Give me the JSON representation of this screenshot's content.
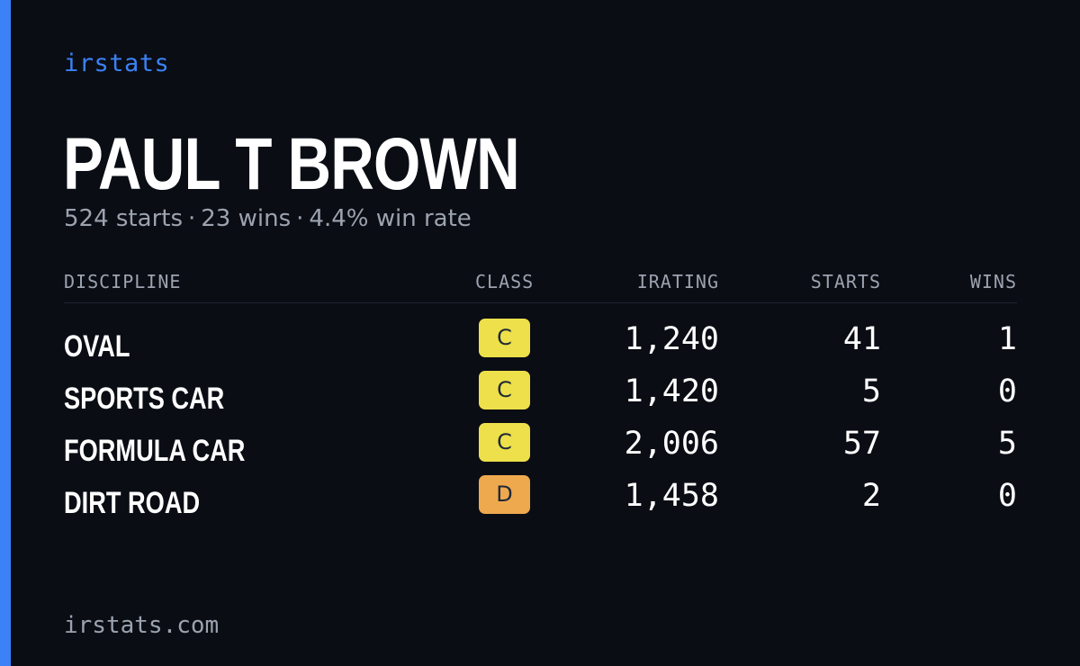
{
  "brand": "irstats",
  "driver": {
    "name": "PAUL T BROWN"
  },
  "summary": {
    "starts": "524 starts",
    "wins": "23 wins",
    "win_rate": "4.4% win rate",
    "separator": "·"
  },
  "table": {
    "headers": {
      "discipline": "DISCIPLINE",
      "class": "CLASS",
      "irating": "IRATING",
      "starts": "STARTS",
      "wins": "WINS"
    },
    "rows": [
      {
        "discipline": "OVAL",
        "class": "C",
        "class_color": "#ede04a",
        "irating": "1,240",
        "starts": "41",
        "wins": "1"
      },
      {
        "discipline": "SPORTS CAR",
        "class": "C",
        "class_color": "#ede04a",
        "irating": "1,420",
        "starts": "5",
        "wins": "0"
      },
      {
        "discipline": "FORMULA CAR",
        "class": "C",
        "class_color": "#ede04a",
        "irating": "2,006",
        "starts": "57",
        "wins": "5"
      },
      {
        "discipline": "DIRT ROAD",
        "class": "D",
        "class_color": "#eea94f",
        "irating": "1,458",
        "starts": "2",
        "wins": "0"
      }
    ]
  },
  "footer": {
    "url": "irstats.com"
  },
  "colors": {
    "background": "#0a0d14",
    "accent": "#3b82f6",
    "muted_text": "#9ca3af"
  }
}
